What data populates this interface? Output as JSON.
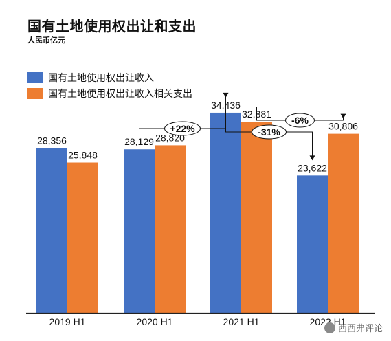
{
  "chart_data": {
    "type": "bar",
    "title": "国有土地使用权出让和支出",
    "subtitle": "人民币亿元",
    "categories": [
      "2019 H1",
      "2020 H1",
      "2021 H1",
      "2022 H1"
    ],
    "series": [
      {
        "name": "国有土地使用权出让收入",
        "values": [
          28356,
          28129,
          34436,
          23622
        ],
        "labels": [
          "28,356",
          "28,129",
          "34,436",
          "23,622"
        ],
        "color": "#4472C4"
      },
      {
        "name": "国有土地使用权出让收入相关支出",
        "values": [
          25848,
          28820,
          32881,
          30806
        ],
        "labels": [
          "25,848",
          "28,820",
          "32,881",
          "30,806"
        ],
        "color": "#ED7D31"
      }
    ],
    "ylim": [
      0,
      42000
    ],
    "grid": false,
    "legend_position": "top-left",
    "annotations": [
      {
        "label": "+22%",
        "from": "2020 H1",
        "to": "2021 H1",
        "series": 0
      },
      {
        "label": "-31%",
        "from": "2021 H1",
        "to": "2022 H1",
        "series": 0
      },
      {
        "label": "-6%",
        "from": "2021 H1",
        "to": "2022 H1",
        "series": 1
      }
    ]
  },
  "watermark": {
    "text": "西西弗评论",
    "icon": "wechat-icon"
  }
}
